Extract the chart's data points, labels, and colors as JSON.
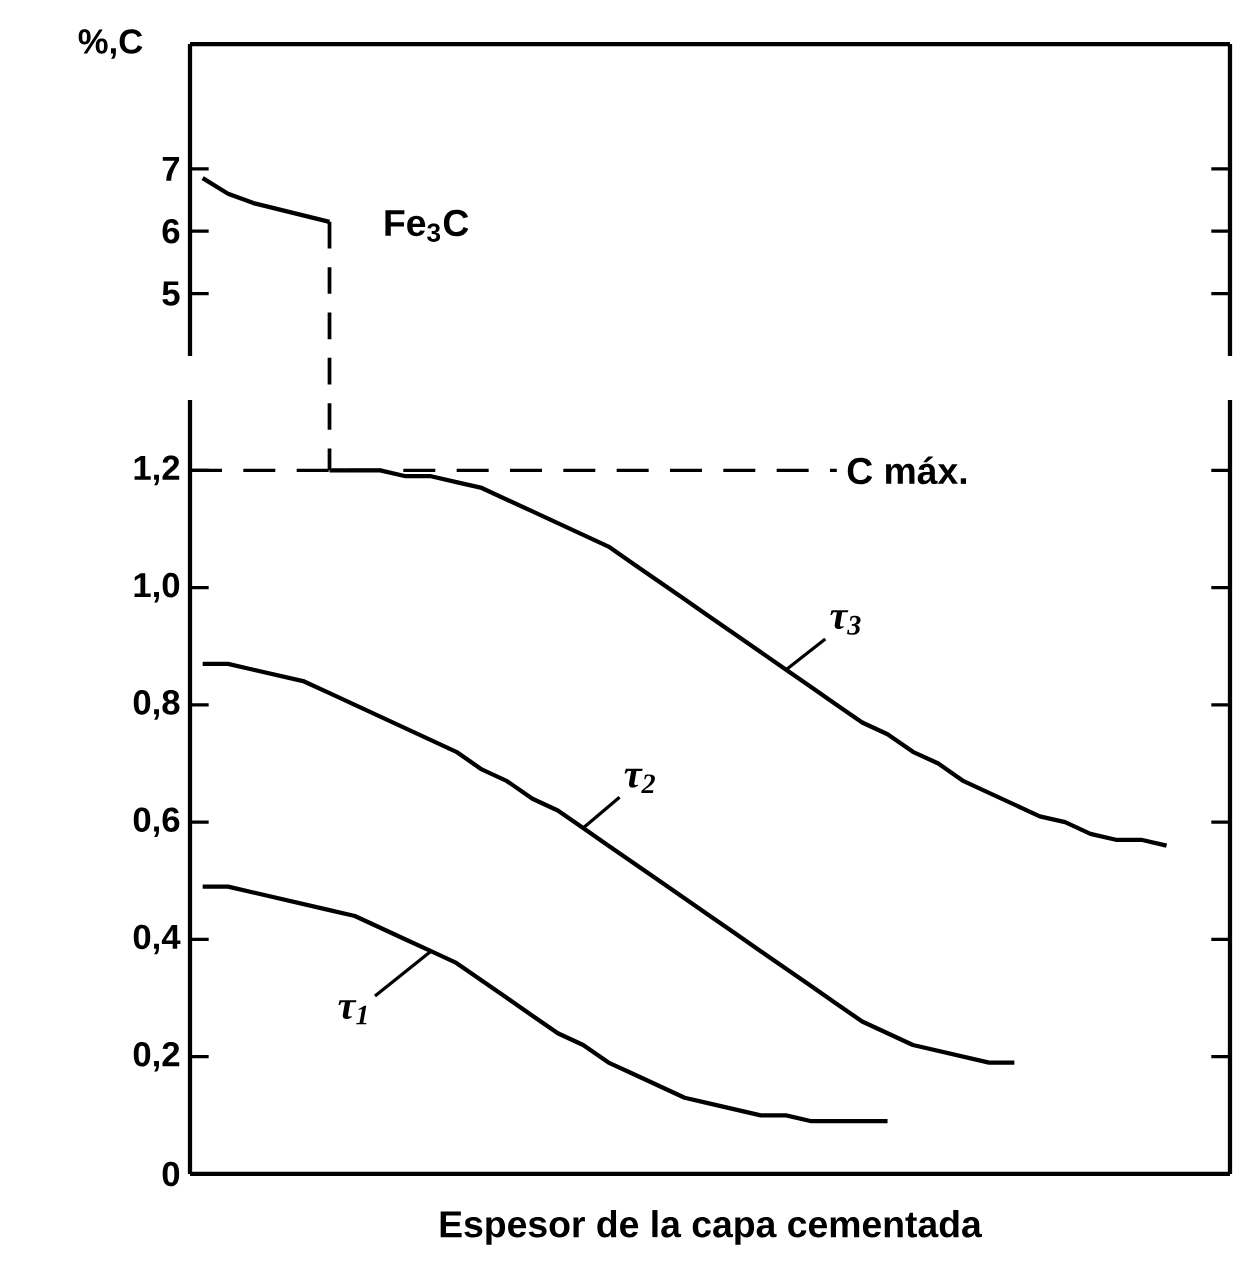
{
  "chart_data": [
    {
      "type": "line",
      "ylabel": "%,C",
      "categories": [
        null,
        null,
        null,
        null,
        null,
        null,
        null,
        null,
        null,
        null,
        null,
        null,
        null,
        null,
        null,
        null,
        null,
        null,
        null,
        null,
        null,
        null,
        null,
        null,
        null,
        null,
        null,
        null,
        null,
        null,
        null,
        null,
        null,
        null,
        null,
        null,
        null,
        null,
        null,
        null,
        null
      ],
      "ylim": [
        4,
        9
      ],
      "yticks": [
        5,
        6,
        7
      ],
      "tick_labels": "y",
      "line_style": "solid",
      "series": [
        {
          "name": "Fe$_{3}$C",
          "color": "#000000",
          "values": [
            6.85,
            6.6,
            6.45,
            6.35,
            6.25,
            6.15,
            null,
            null,
            null,
            null,
            null,
            null,
            null,
            null,
            null,
            null,
            null,
            null,
            null,
            null,
            null,
            null,
            null,
            null,
            null,
            null,
            null,
            null,
            null,
            null,
            null,
            null,
            null,
            null,
            null,
            null,
            null,
            null,
            null,
            null,
            null
          ]
        }
      ]
    },
    {
      "type": "line",
      "xlabel": "Espesor de la capa cementada",
      "categories": [
        null,
        null,
        null,
        null,
        null,
        null,
        null,
        null,
        null,
        null,
        null,
        null,
        null,
        null,
        null,
        null,
        null,
        null,
        null,
        null,
        null,
        null,
        null,
        null,
        null,
        null,
        null,
        null,
        null,
        null,
        null,
        null,
        null,
        null,
        null,
        null,
        null,
        null,
        null,
        null,
        null
      ],
      "ylim": [
        0,
        1.32
      ],
      "yticks": [
        0,
        {
          "value": 0.2,
          "label": "0,2"
        },
        {
          "value": 0.4,
          "label": "0,4"
        },
        {
          "value": 0.6,
          "label": "0,6"
        },
        {
          "value": 0.8,
          "label": "0,8"
        },
        {
          "value": 1.0,
          "label": "1,0"
        },
        {
          "value": 1.2,
          "label": "1,2"
        }
      ],
      "tick_labels": "y",
      "line_style": "solid",
      "ref_lines": [
        {
          "axis": "y",
          "value": 1.2,
          "label": "C máx.",
          "line_style": "dashed"
        }
      ],
      "series": [
        {
          "name": "τ$_{1}$",
          "color": "#000000",
          "values": [
            0.49,
            0.49,
            0.48,
            0.47,
            0.46,
            0.45,
            0.44,
            0.42,
            0.4,
            0.38,
            0.36,
            0.33,
            0.3,
            0.27,
            0.24,
            0.22,
            0.19,
            0.17,
            0.15,
            0.13,
            0.12,
            0.11,
            0.1,
            0.1,
            0.09,
            0.09,
            0.09,
            0.09,
            null,
            null,
            null,
            null,
            null,
            null,
            null,
            null,
            null,
            null,
            null,
            null,
            null
          ]
        },
        {
          "name": "τ$_{2}$",
          "color": "#000000",
          "values": [
            0.87,
            0.87,
            0.86,
            0.85,
            0.84,
            0.82,
            0.8,
            0.78,
            0.76,
            0.74,
            0.72,
            0.69,
            0.67,
            0.64,
            0.62,
            0.59,
            0.56,
            0.53,
            0.5,
            0.47,
            0.44,
            0.41,
            0.38,
            0.35,
            0.32,
            0.29,
            0.26,
            0.24,
            0.22,
            0.21,
            0.2,
            0.19,
            0.19,
            null,
            null,
            null,
            null,
            null,
            null,
            null,
            null
          ]
        },
        {
          "name": "τ$_{3}$",
          "color": "#000000",
          "values": [
            null,
            null,
            null,
            null,
            null,
            1.2,
            1.2,
            1.2,
            1.19,
            1.19,
            1.18,
            1.17,
            1.15,
            1.13,
            1.11,
            1.09,
            1.07,
            1.04,
            1.01,
            0.98,
            0.95,
            0.92,
            0.89,
            0.86,
            0.83,
            0.8,
            0.77,
            0.75,
            0.72,
            0.7,
            0.67,
            0.65,
            0.63,
            0.61,
            0.6,
            0.58,
            0.57,
            0.57,
            0.56,
            null,
            null
          ]
        }
      ]
    }
  ]
}
